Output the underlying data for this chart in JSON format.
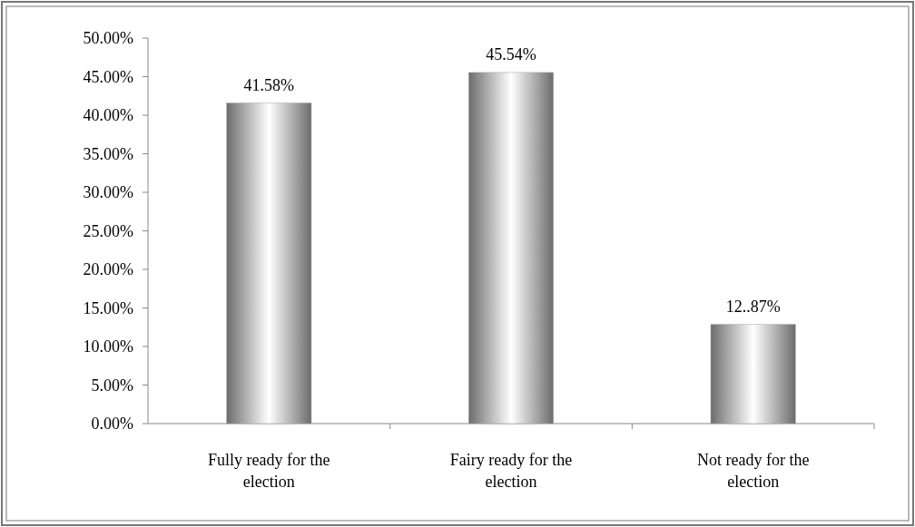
{
  "chart_data": {
    "type": "bar",
    "categories": [
      "Fully ready for the election",
      "Fairy ready for the election",
      "Not ready for the election"
    ],
    "values": [
      41.58,
      45.54,
      12.87
    ],
    "value_labels": [
      "41.58%",
      "45.54%",
      "12..87%"
    ],
    "color": "#a6a6a6",
    "ylim": [
      0,
      50
    ],
    "yticks": [
      {
        "value": 0,
        "label": "0.00%"
      },
      {
        "value": 5,
        "label": "5.00%"
      },
      {
        "value": 10,
        "label": "10.00%"
      },
      {
        "value": 15,
        "label": "15.00%"
      },
      {
        "value": 20,
        "label": "20.00%"
      },
      {
        "value": 25,
        "label": "25.00%"
      },
      {
        "value": 30,
        "label": "30.00%"
      },
      {
        "value": 35,
        "label": "35.00%"
      },
      {
        "value": 40,
        "label": "40.00%"
      },
      {
        "value": 45,
        "label": "45.00%"
      },
      {
        "value": 50,
        "label": "50.00%"
      }
    ],
    "grid": false
  }
}
